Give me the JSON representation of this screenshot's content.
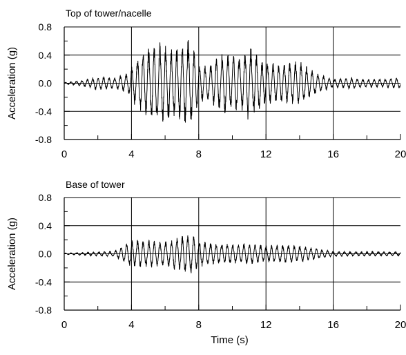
{
  "chart_data": [
    {
      "type": "line",
      "title": "Top of tower/nacelle",
      "xlabel": "",
      "ylabel": "Acceleration (g)",
      "xlim": [
        0,
        20
      ],
      "ylim": [
        -0.8,
        0.8
      ],
      "xticks": [
        "0",
        "4",
        "8",
        "12",
        "16",
        "20"
      ],
      "yticks": [
        "0.8",
        "0.4",
        "0.0",
        "-0.4",
        "-0.8"
      ],
      "grid": true,
      "legend": "none",
      "series": [
        {
          "color": "#000000",
          "envelope": {
            "t": [
              0,
              1,
              2,
              3,
              3.8,
              4.5,
              5.5,
              6.5,
              7.5,
              8.0,
              8.5,
              9.5,
              10.5,
              11.0,
              12.0,
              13.0,
              14.0,
              15.0,
              16.0,
              17.0,
              18.0,
              19.0,
              20.0
            ],
            "amplitude": [
              0.01,
              0.04,
              0.1,
              0.08,
              0.15,
              0.45,
              0.6,
              0.5,
              0.65,
              0.3,
              0.25,
              0.45,
              0.4,
              0.55,
              0.3,
              0.3,
              0.32,
              0.15,
              0.06,
              0.08,
              0.06,
              0.06,
              0.08
            ]
          }
        }
      ]
    },
    {
      "type": "line",
      "title": "Base of tower",
      "xlabel": "Time (s)",
      "ylabel": "Acceleration (g)",
      "xlim": [
        0,
        20
      ],
      "ylim": [
        -0.8,
        0.8
      ],
      "xticks": [
        "0",
        "4",
        "8",
        "12",
        "16",
        "20"
      ],
      "yticks": [
        "0.8",
        "0.4",
        "0.0",
        "-0.4",
        "-0.8"
      ],
      "grid": true,
      "legend": "none",
      "series": [
        {
          "color": "#000000",
          "envelope": {
            "t": [
              0,
              1,
              2,
              3,
              4.0,
              5.0,
              6.0,
              7.5,
              8.0,
              9.0,
              10.0,
              11.0,
              12.0,
              13.0,
              14.0,
              15.0,
              16.0,
              17.0,
              18.0,
              20.0
            ],
            "amplitude": [
              0.01,
              0.02,
              0.03,
              0.04,
              0.2,
              0.2,
              0.18,
              0.3,
              0.2,
              0.15,
              0.15,
              0.15,
              0.12,
              0.14,
              0.12,
              0.08,
              0.04,
              0.03,
              0.03,
              0.03
            ]
          }
        }
      ]
    }
  ]
}
